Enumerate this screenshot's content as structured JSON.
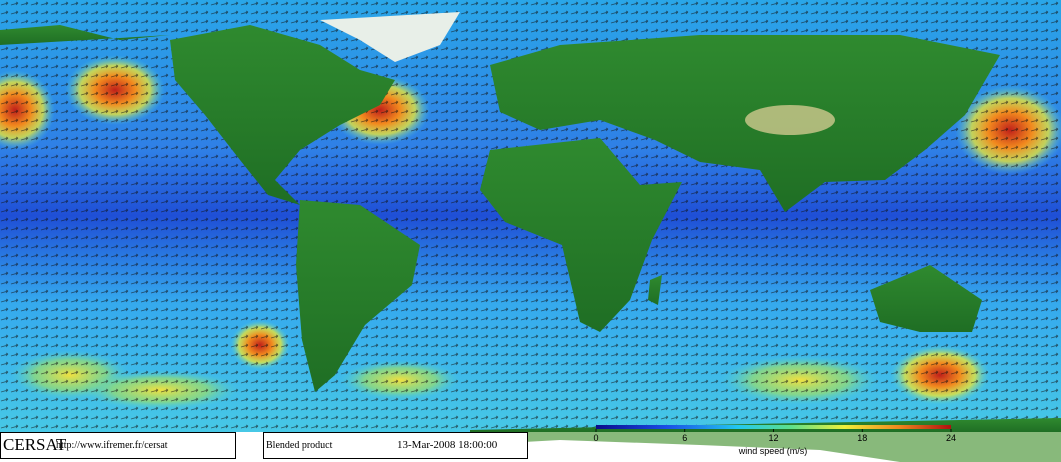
{
  "footer": {
    "logo": "CERSAT",
    "url": "http://www.ifremer.fr/cersat",
    "product": "Blended product",
    "datetime": "13-Mar-2008 18:00:00"
  },
  "colorbar": {
    "label": "wind speed (m/s)",
    "lim": [
      0,
      24
    ],
    "ticks": [
      0,
      6,
      12,
      18,
      24
    ]
  }
}
